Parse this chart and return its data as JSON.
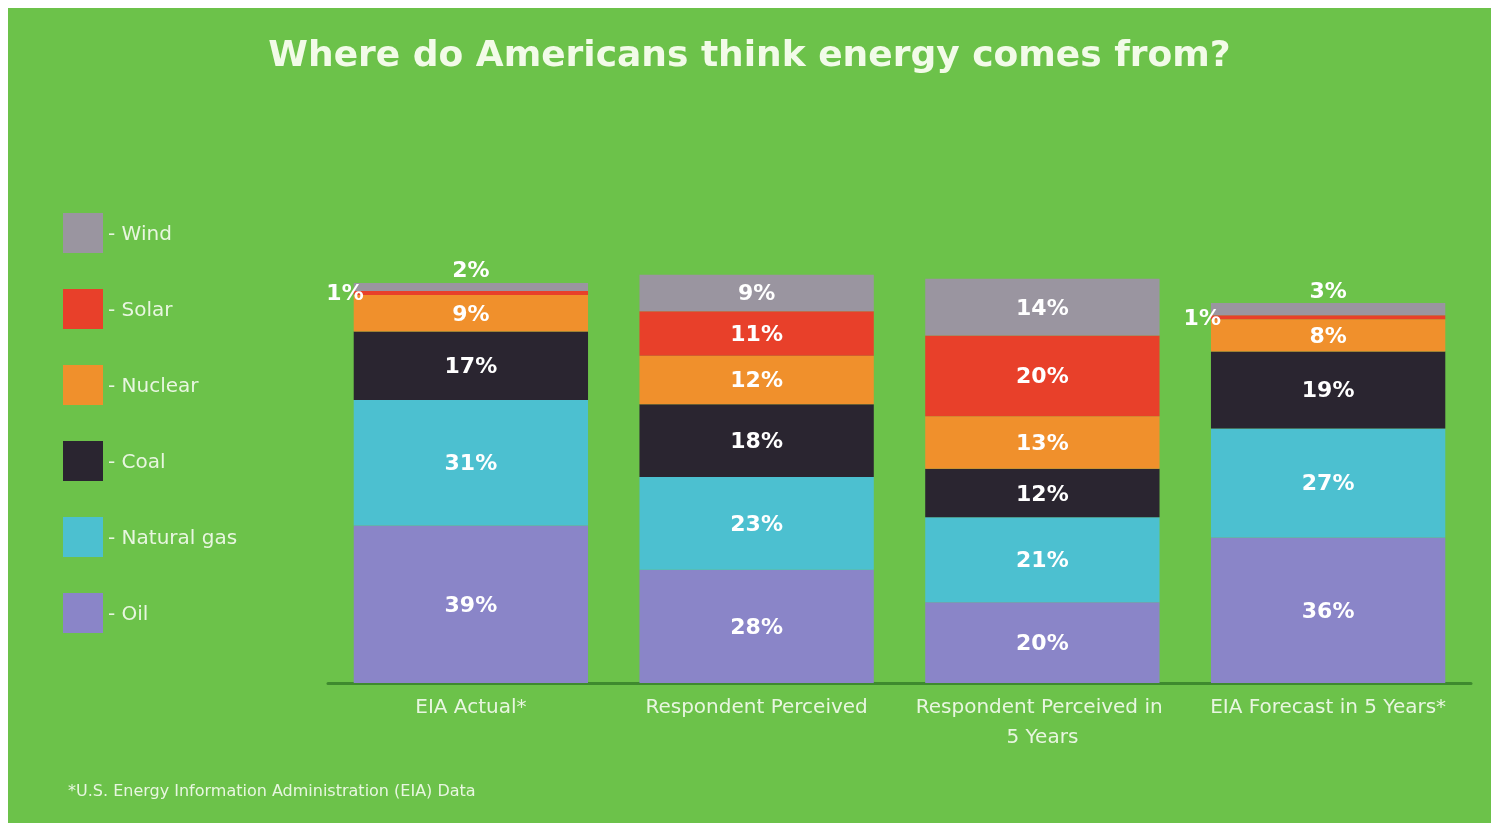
{
  "chart_data": {
    "type": "bar",
    "title": "Where do Americans think energy comes from?",
    "categories": [
      "EIA Actual*",
      "Respondent Perceived",
      "Respondent Perceived in 5 Years",
      "EIA Forecast in 5 Years*"
    ],
    "stacked": true,
    "legend": "left",
    "series": [
      {
        "name": "- Oil",
        "color": "#8a85c8",
        "values": [
          39,
          28,
          20,
          36
        ],
        "value_labels": [
          "39%",
          "28%",
          "20%",
          "36%"
        ]
      },
      {
        "name": "- Natural gas",
        "color": "#4cc0d0",
        "values": [
          31,
          23,
          21,
          27
        ],
        "value_labels": [
          "31%",
          "23%",
          "21%",
          "27%"
        ]
      },
      {
        "name": "- Coal",
        "color": "#2a2530",
        "values": [
          17,
          18,
          12,
          19
        ],
        "value_labels": [
          "17%",
          "18%",
          "12%",
          "19%"
        ]
      },
      {
        "name": "- Nuclear",
        "color": "#f0902c",
        "values": [
          9,
          12,
          13,
          8
        ],
        "value_labels": [
          "9%",
          "12%",
          "13%",
          "8%"
        ]
      },
      {
        "name": "- Solar",
        "color": "#e8402a",
        "values": [
          1,
          11,
          20,
          1
        ],
        "value_labels": [
          "1%",
          "11%",
          "20%",
          "1%"
        ]
      },
      {
        "name": "- Wind",
        "color": "#9a95a0",
        "values": [
          2,
          9,
          14,
          3
        ],
        "value_labels": [
          "2%",
          "9%",
          "14%",
          "3%"
        ]
      }
    ],
    "annotations": [
      "*U.S. Energy Information Administration (EIA) Data"
    ]
  }
}
